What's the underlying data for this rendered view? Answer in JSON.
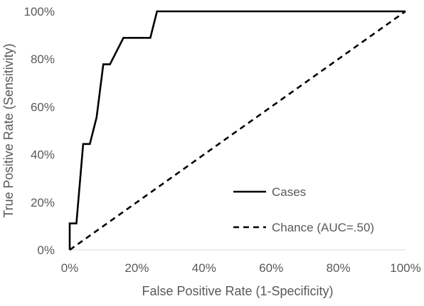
{
  "chart_data": {
    "type": "line",
    "title": "",
    "xlabel": "False Positive Rate (1-Specificity)",
    "ylabel": "True Positive Rate (Sensitivity)",
    "xlim": [
      0,
      1
    ],
    "ylim": [
      0,
      1
    ],
    "x_ticks": [
      "0%",
      "20%",
      "40%",
      "60%",
      "80%",
      "100%"
    ],
    "y_ticks": [
      "0%",
      "20%",
      "40%",
      "60%",
      "80%",
      "100%"
    ],
    "grid": false,
    "legend_position": "lower-right",
    "series": [
      {
        "name": "Cases",
        "style": "solid",
        "color": "#000000",
        "x": [
          0,
          0,
          0.02,
          0.02,
          0.04,
          0.04,
          0.06,
          0.06,
          0.08,
          0.1,
          0.1,
          0.12,
          0.12,
          0.16,
          0.16,
          0.22,
          0.22,
          0.24,
          0.26,
          0.26,
          1.0
        ],
        "y": [
          0,
          0.111,
          0.111,
          0.111,
          0.444,
          0.444,
          0.444,
          0.444,
          0.556,
          0.778,
          0.778,
          0.778,
          0.778,
          0.889,
          0.889,
          0.889,
          0.889,
          0.889,
          1.0,
          1.0,
          1.0
        ]
      },
      {
        "name": "Chance (AUC=.50)",
        "style": "dashed",
        "color": "#000000",
        "x": [
          0,
          1
        ],
        "y": [
          0,
          1
        ]
      }
    ]
  }
}
